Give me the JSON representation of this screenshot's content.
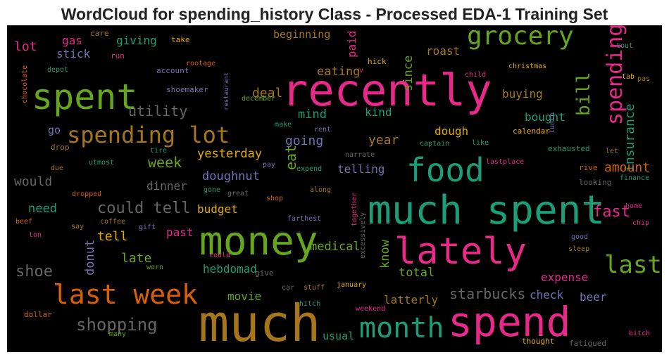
{
  "title": "WordCloud for spending_history Class - Processed EDA-1 Training Set",
  "words": [
    "recently",
    "much spent",
    "much",
    "spend",
    "money",
    "lately",
    "spent",
    "food",
    "month",
    "last week",
    "grocery",
    "spending lot",
    "last",
    "spending",
    "shopping",
    "bill",
    "starbucks",
    "could tell",
    "fast",
    "shoe",
    "insurance",
    "amount",
    "eat",
    "would",
    "utility",
    "week",
    "deal",
    "eating",
    "mind",
    "going",
    "year",
    "dough",
    "bought",
    "buying",
    "kind",
    "roast",
    "beginning",
    "since",
    "paid",
    "telling",
    "yesterday",
    "doughnut",
    "dinner",
    "budget",
    "need",
    "tell",
    "past",
    "late",
    "donut",
    "medical",
    "know",
    "total",
    "hebdomad",
    "movie",
    "latterly",
    "usual",
    "expense",
    "check",
    "beer",
    "gas",
    "giving",
    "stick",
    "lot",
    "go",
    "care",
    "take",
    "run",
    "chocolate",
    "depot",
    "account",
    "rootage",
    "restaurant",
    "shoemaker",
    "december",
    "hick",
    "v",
    "child",
    "christmas",
    "tout",
    "tab",
    "pas",
    "lunch",
    "calendar",
    "make",
    "rent",
    "captain",
    "like",
    "exhausted",
    "let",
    "drop",
    "tire",
    "narrate",
    "due",
    "utmost",
    "pay",
    "expend",
    "lastplace",
    "rive",
    "finance",
    "looking",
    "gone",
    "great",
    "along",
    "dropped",
    "shop",
    "together",
    "home",
    "farthest",
    "beef",
    "coffee",
    "gift",
    "chip",
    "say",
    "ton",
    "excessively",
    "good",
    "could",
    "sleep",
    "worn",
    "give",
    "car",
    "stuff",
    "january",
    "hitch",
    "weekend",
    "dollar",
    "many",
    "thought",
    "fatigued",
    "bitch"
  ]
}
